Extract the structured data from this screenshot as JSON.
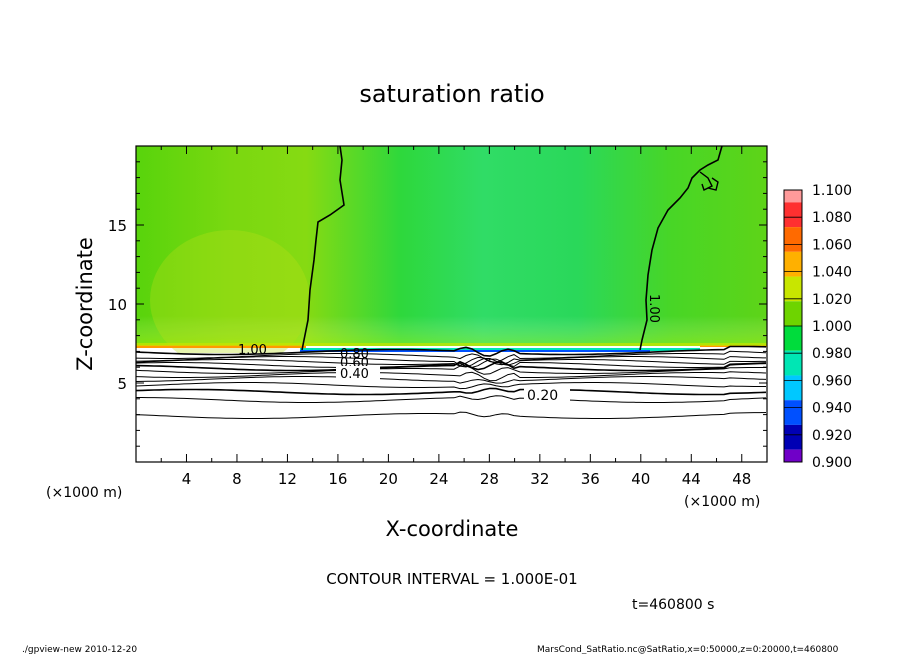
{
  "chart_data": {
    "type": "heatmap",
    "title": "saturation ratio",
    "xlabel": "X-coordinate",
    "ylabel": "Z-coordinate",
    "x_unit": "(×1000 m)",
    "y_unit": "(×1000 m)",
    "xlim": [
      0,
      50
    ],
    "ylim": [
      0,
      20
    ],
    "x_ticks": [
      "4",
      "8",
      "12",
      "16",
      "20",
      "24",
      "28",
      "32",
      "36",
      "40",
      "44",
      "48"
    ],
    "y_ticks": [
      "5",
      "10",
      "15"
    ],
    "colorbar": {
      "levels": [
        "1.100",
        "1.080",
        "1.060",
        "1.040",
        "1.020",
        "1.000",
        "0.980",
        "0.960",
        "0.940",
        "0.920",
        "0.900"
      ],
      "colors": [
        "#ff9a9a",
        "#ff3030",
        "#ff6a00",
        "#ffb000",
        "#c8e600",
        "#6ed400",
        "#00dc3c",
        "#00e6b4",
        "#00c8ff",
        "#0050ff",
        "#0000b4",
        "#7000c8"
      ]
    },
    "contour_labels": [
      "1.00",
      "1.00",
      "0.80",
      "0.60",
      "0.40",
      "0.20"
    ],
    "contour_interval": "CONTOUR INTERVAL = 1.000E-01",
    "time": "t=460800 s"
  },
  "footer": {
    "left": "./gpview-new  2010-12-20",
    "right": "MarsCond_SatRatio.nc@SatRatio,x=0:50000,z=0:20000,t=460800"
  }
}
